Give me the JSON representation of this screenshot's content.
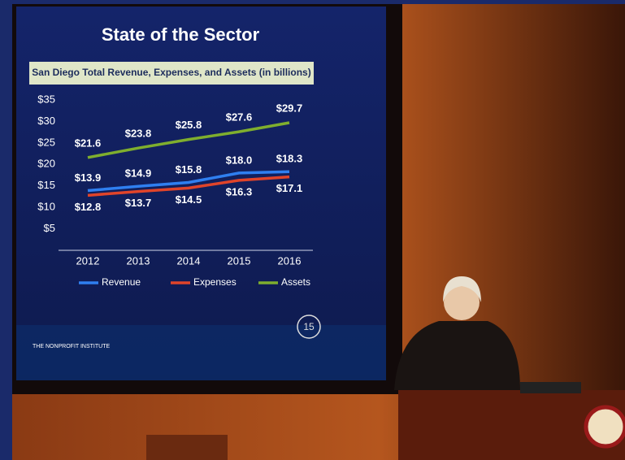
{
  "chart_data": {
    "type": "line",
    "title": "State of the Sector",
    "subtitle": "San Diego Total Revenue, Expenses, and Assets (in billions)",
    "categories": [
      "2012",
      "2013",
      "2014",
      "2015",
      "2016"
    ],
    "series": [
      {
        "name": "Revenue",
        "color": "#2f7ff0",
        "values": [
          13.9,
          14.9,
          15.8,
          18.0,
          18.3
        ],
        "value_labels": [
          "$13.9",
          "$14.9",
          "$15.8",
          "$18.0",
          "$18.3"
        ]
      },
      {
        "name": "Expenses",
        "color": "#e0442a",
        "values": [
          12.8,
          13.7,
          14.5,
          16.3,
          17.1
        ],
        "value_labels": [
          "$12.8",
          "$13.7",
          "$14.5",
          "$16.3",
          "$17.1"
        ]
      },
      {
        "name": "Assets",
        "color": "#7fae2e",
        "values": [
          21.6,
          23.8,
          25.8,
          27.6,
          29.7
        ],
        "value_labels": [
          "$21.6",
          "$23.8",
          "$25.8",
          "$27.6",
          "$29.7"
        ]
      }
    ],
    "ylim": [
      0,
      35
    ],
    "yticks": [
      {
        "value": 5,
        "label": "$5"
      },
      {
        "value": 10,
        "label": "$10"
      },
      {
        "value": 15,
        "label": "$15"
      },
      {
        "value": 20,
        "label": "$20"
      },
      {
        "value": 25,
        "label": "$25"
      },
      {
        "value": 30,
        "label": "$30"
      },
      {
        "value": 35,
        "label": "$35"
      }
    ],
    "grid": false,
    "legend": "bottom"
  },
  "slide_footer": {
    "institute": "THE NONPROFIT INSTITUTE",
    "anniversary": "15"
  }
}
